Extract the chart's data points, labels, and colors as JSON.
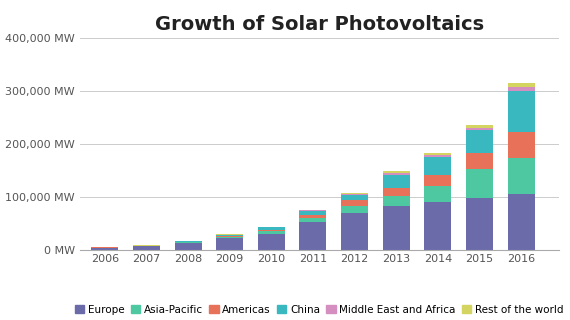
{
  "title": "Growth of Solar Photovoltaics",
  "years": [
    2006,
    2007,
    2008,
    2009,
    2010,
    2011,
    2012,
    2013,
    2014,
    2015,
    2016
  ],
  "series": {
    "Europe": [
      3500,
      6000,
      13000,
      22000,
      30000,
      52000,
      70000,
      82000,
      90000,
      98000,
      105000
    ],
    "Asia-Pacific": [
      400,
      900,
      1500,
      2500,
      5000,
      8000,
      13000,
      20000,
      30000,
      55000,
      68000
    ],
    "Americas": [
      200,
      400,
      800,
      1500,
      3000,
      6000,
      10000,
      15000,
      22000,
      30000,
      50000
    ],
    "China": [
      100,
      200,
      600,
      2000,
      4000,
      7000,
      10000,
      25000,
      33000,
      43000,
      78000
    ],
    "Middle East and Africa": [
      50,
      100,
      200,
      400,
      700,
      1200,
      2000,
      3000,
      4000,
      5000,
      6500
    ],
    "Rest of the world": [
      100,
      200,
      300,
      500,
      800,
      1500,
      2500,
      3500,
      4500,
      5500,
      8000
    ]
  },
  "colors": {
    "Europe": "#6b6baa",
    "Asia-Pacific": "#4dc8a0",
    "Americas": "#e8715a",
    "China": "#3ab8c0",
    "Middle East and Africa": "#d48fc0",
    "Rest of the world": "#d4d460"
  },
  "ylim": [
    0,
    400000
  ],
  "yticks": [
    0,
    100000,
    200000,
    300000,
    400000
  ],
  "ytick_labels": [
    "0 MW",
    "100,000 MW",
    "200,000 MW",
    "300,000 MW",
    "400,000 MW"
  ],
  "background_color": "#ffffff",
  "grid_color": "#cccccc",
  "title_fontsize": 14,
  "axis_fontsize": 8,
  "legend_fontsize": 7.5,
  "bar_width": 0.65
}
